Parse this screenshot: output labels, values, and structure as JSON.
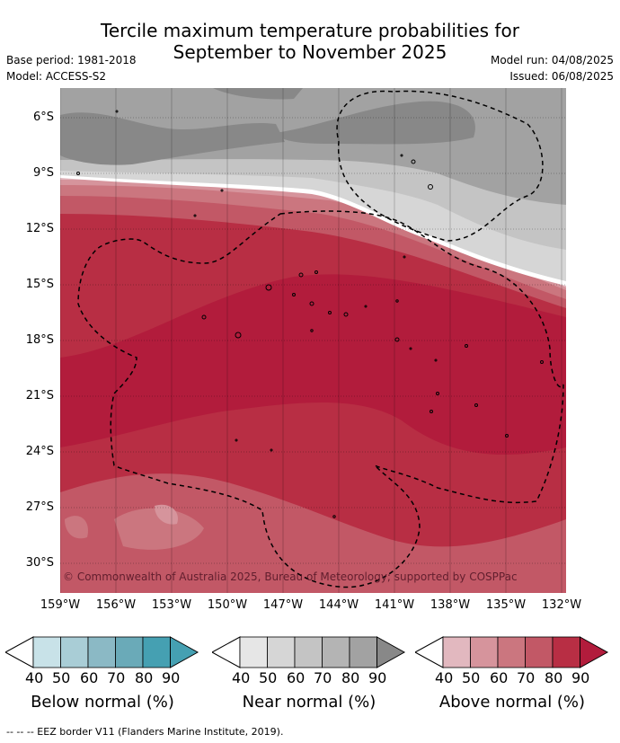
{
  "title_line1": "Tercile maximum temperature probabilities for",
  "title_line2": "September to November 2025",
  "base_period": "Base period: 1981-2018",
  "model": "Model: ACCESS-S2",
  "model_run": "Model run: 04/08/2025",
  "issued": "Issued: 06/08/2025",
  "copyright": "© Commonwealth of Australia 2025, Bureau of Meteorology; supported by COSPPac",
  "lat_labels": [
    "6°S",
    "9°S",
    "12°S",
    "15°S",
    "18°S",
    "21°S",
    "24°S",
    "27°S",
    "30°S"
  ],
  "lon_labels": [
    "159°W",
    "156°W",
    "153°W",
    "150°W",
    "147°W",
    "144°W",
    "141°W",
    "138°W",
    "135°W",
    "132°W"
  ],
  "colorbars": [
    {
      "title": "Below normal (%)",
      "ticks": [
        "40",
        "50",
        "60",
        "70",
        "80",
        "90"
      ],
      "colors": [
        "#ffffff",
        "#c8e2e8",
        "#a9cdd6",
        "#8bb9c5",
        "#6aaab8",
        "#45a0b2"
      ]
    },
    {
      "title": "Near normal (%)",
      "ticks": [
        "40",
        "50",
        "60",
        "70",
        "80",
        "90"
      ],
      "colors": [
        "#ffffff",
        "#e6e6e6",
        "#d6d6d6",
        "#c4c4c4",
        "#b4b4b4",
        "#a2a2a2",
        "#888888"
      ]
    },
    {
      "title": "Above normal (%)",
      "ticks": [
        "40",
        "50",
        "60",
        "70",
        "80",
        "90"
      ],
      "colors": [
        "#ffffff",
        "#e2b8bf",
        "#d6949c",
        "#cb767f",
        "#c25866",
        "#b82e44",
        "#b21c3c"
      ]
    }
  ],
  "footer": "--  --  -- EEZ border V11 (Flanders Marine Institute, 2019)."
}
